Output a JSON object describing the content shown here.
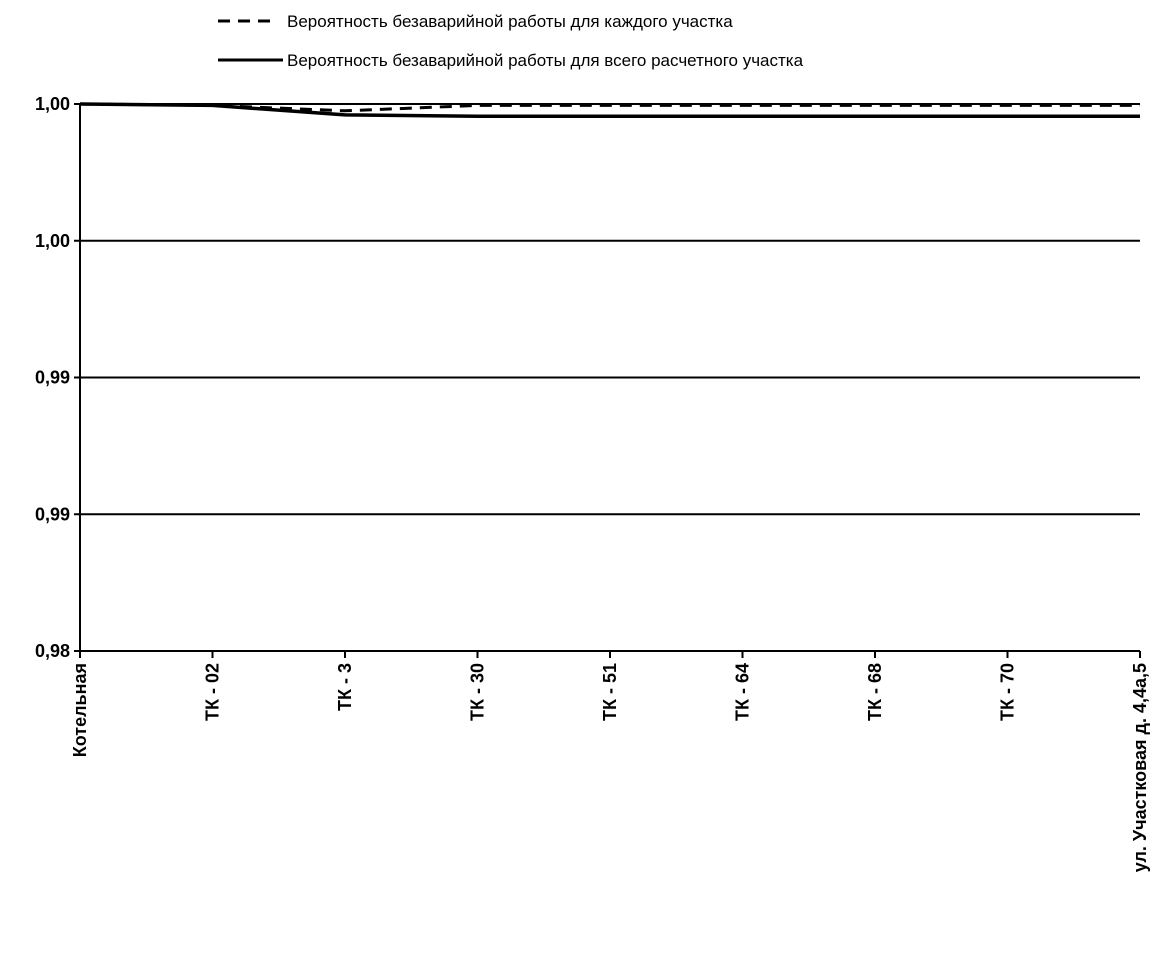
{
  "chart_data": {
    "type": "line",
    "title": "",
    "xlabel": "",
    "ylabel": "",
    "categories": [
      "Котельная",
      "ТК - 02",
      "ТК - 3",
      "ТК - 30",
      "ТК - 51",
      "ТК - 64",
      "ТК - 68",
      "ТК - 70",
      "ул. Участковая д. 4,4а,5"
    ],
    "y_ticks": [
      {
        "value": 0.98,
        "label": "0,98"
      },
      {
        "value": 0.985,
        "label": "0,99"
      },
      {
        "value": 0.99,
        "label": "0,99"
      },
      {
        "value": 0.995,
        "label": "1,00"
      },
      {
        "value": 1.0,
        "label": "1,00"
      }
    ],
    "ylim": [
      0.98,
      1.0
    ],
    "grid": true,
    "legend_position": "top",
    "series": [
      {
        "name": "Вероятность безаварийной работы для каждого участка",
        "style": "dashed",
        "color": "#000000",
        "values": [
          1.0,
          0.99995,
          0.99975,
          0.99995,
          0.99995,
          0.99995,
          0.99995,
          0.99995,
          0.99995
        ]
      },
      {
        "name": "Вероятность безаварийной работы для всего расчетного участка",
        "style": "solid",
        "color": "#000000",
        "values": [
          1.0,
          0.99995,
          0.9996,
          0.99955,
          0.99955,
          0.99955,
          0.99955,
          0.99955,
          0.99955
        ]
      }
    ]
  }
}
